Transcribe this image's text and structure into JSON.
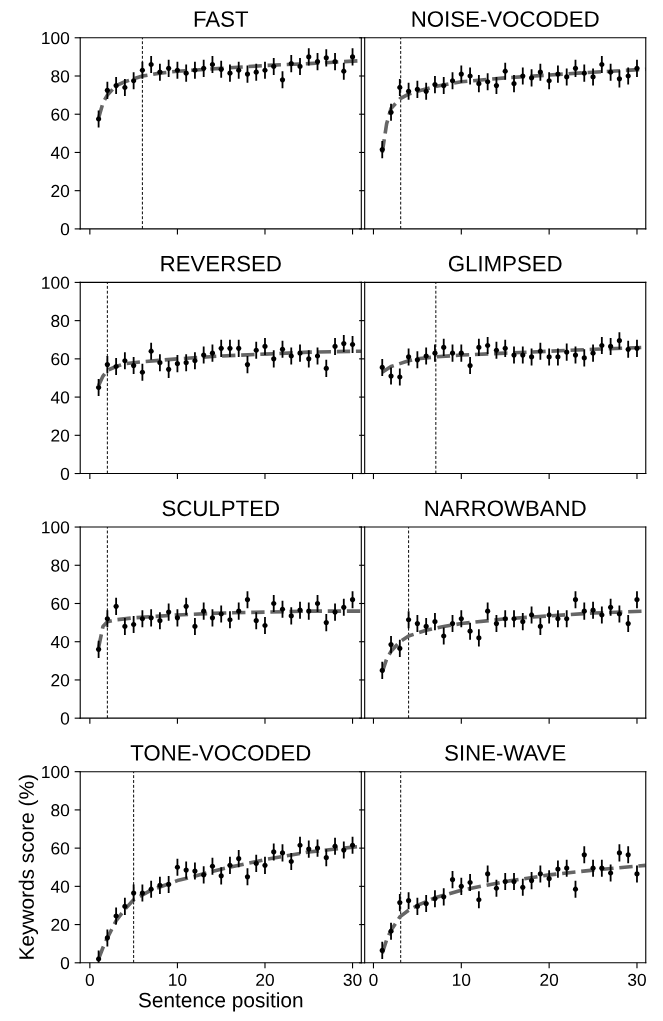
{
  "chart_data": [
    {
      "type": "scatter",
      "title": "FAST",
      "xlim": [
        -1.1,
        31
      ],
      "ylim": [
        0,
        100
      ],
      "xticks": [
        0,
        10,
        20,
        30
      ],
      "yticks": [
        0,
        20,
        40,
        60,
        80,
        100
      ],
      "tick_labels": "y",
      "ref_lines": [
        {
          "axis": "x",
          "value": 6,
          "color": "#000000",
          "line_style": "dashed"
        }
      ],
      "series": [
        {
          "color": "#000000",
          "marker": "circle",
          "x": [
            1,
            2,
            3,
            4,
            5,
            6,
            7,
            8,
            9,
            10,
            11,
            12,
            13,
            14,
            15,
            16,
            17,
            18,
            19,
            20,
            21,
            22,
            23,
            24,
            25,
            26,
            27,
            28,
            29,
            30
          ],
          "values": [
            57.5,
            72.5,
            75,
            74,
            77.5,
            83,
            86,
            82,
            84,
            83,
            81.5,
            83,
            84,
            86,
            83.5,
            81.5,
            83,
            81,
            82,
            83,
            85,
            78,
            86.5,
            85,
            90,
            87.5,
            89.5,
            87.5,
            82.5,
            90
          ],
          "errors": [
            4,
            4,
            4,
            4,
            4,
            4,
            4,
            4,
            4,
            4,
            4,
            4,
            4,
            4,
            4,
            4,
            4,
            4,
            4,
            4,
            4,
            4,
            4,
            4,
            4,
            4,
            4,
            4,
            4,
            4
          ]
        },
        {
          "type": "line",
          "color": "#666666",
          "line_style": "dashed",
          "x": [
            1,
            1.5,
            2,
            3,
            4,
            6,
            8,
            10,
            15,
            20,
            25,
            31
          ],
          "values": [
            58,
            66,
            70,
            75,
            77,
            80,
            81.5,
            82.5,
            84,
            85.5,
            86.5,
            88
          ]
        }
      ]
    },
    {
      "type": "scatter",
      "title": "NOISE-VOCODED",
      "xlim": [
        -1,
        31
      ],
      "ylim": [
        0,
        100
      ],
      "xticks": [
        0,
        10,
        20,
        30
      ],
      "yticks": [
        0,
        20,
        40,
        60,
        80,
        100
      ],
      "tick_labels": false,
      "ref_lines": [
        {
          "axis": "x",
          "value": 3.1,
          "color": "#000000",
          "line_style": "dashed"
        }
      ],
      "series": [
        {
          "color": "#000000",
          "marker": "circle",
          "x": [
            1,
            2,
            3,
            4,
            5,
            6,
            7,
            8,
            9,
            10,
            11,
            12,
            13,
            14,
            15,
            16,
            17,
            18,
            19,
            20,
            21,
            22,
            23,
            24,
            25,
            26,
            27,
            28,
            29,
            30
          ],
          "values": [
            41.5,
            61,
            74,
            72,
            73,
            72,
            75.5,
            75,
            77.5,
            81,
            80,
            76,
            77,
            75,
            82.5,
            76,
            80,
            79,
            82,
            77.5,
            81,
            79.5,
            84,
            81.5,
            79.5,
            86,
            82,
            78.5,
            80,
            84
          ],
          "errors": [
            4,
            4,
            4,
            4,
            4,
            4,
            4,
            4,
            4,
            4,
            4,
            4,
            4,
            4,
            4,
            4,
            4,
            4,
            4,
            4,
            4,
            4,
            4,
            4,
            4,
            4,
            4,
            4,
            4,
            4
          ]
        },
        {
          "type": "line",
          "color": "#666666",
          "line_style": "dashed",
          "x": [
            1,
            1.5,
            2,
            3,
            4,
            5,
            7,
            10,
            15,
            20,
            25,
            31
          ],
          "values": [
            40,
            55,
            63,
            68,
            70.5,
            72,
            74.5,
            77,
            79,
            80.5,
            82,
            83.5
          ]
        }
      ]
    },
    {
      "type": "scatter",
      "title": "REVERSED",
      "xlim": [
        -1.1,
        31
      ],
      "ylim": [
        0,
        100
      ],
      "xticks": [
        0,
        10,
        20,
        30
      ],
      "yticks": [
        0,
        20,
        40,
        60,
        80,
        100
      ],
      "tick_labels": "y",
      "ref_lines": [
        {
          "axis": "x",
          "value": 2,
          "color": "#000000",
          "line_style": "dashed"
        }
      ],
      "series": [
        {
          "color": "#000000",
          "marker": "circle",
          "x": [
            1,
            2,
            3,
            4,
            5,
            6,
            7,
            8,
            9,
            10,
            11,
            12,
            13,
            14,
            15,
            16,
            17,
            18,
            19,
            20,
            21,
            22,
            23,
            24,
            25,
            26,
            27,
            28,
            29,
            30
          ],
          "values": [
            45,
            57,
            56,
            59,
            56.5,
            53,
            64,
            58,
            54.5,
            57.5,
            58,
            59,
            62,
            63,
            65.5,
            65.5,
            65.5,
            57,
            64.5,
            66.5,
            60,
            65,
            61.5,
            63,
            60,
            61.5,
            55,
            66.5,
            68,
            67.5
          ],
          "errors": [
            4,
            4,
            4,
            4,
            4,
            4,
            4,
            4,
            4,
            4,
            4,
            4,
            4,
            4,
            4,
            4,
            4,
            4,
            4,
            4,
            4,
            4,
            4,
            4,
            4,
            4,
            4,
            4,
            4,
            4
          ]
        },
        {
          "type": "line",
          "color": "#666666",
          "line_style": "dashed",
          "x": [
            1,
            1.5,
            2,
            3,
            4,
            6,
            10,
            15,
            20,
            25,
            31
          ],
          "values": [
            46,
            51,
            54,
            56,
            57.5,
            58.5,
            60,
            61.5,
            62.5,
            63.5,
            64
          ]
        }
      ]
    },
    {
      "type": "scatter",
      "title": "GLIMPSED",
      "xlim": [
        -1,
        31
      ],
      "ylim": [
        0,
        100
      ],
      "xticks": [
        0,
        10,
        20,
        30
      ],
      "yticks": [
        0,
        20,
        40,
        60,
        80,
        100
      ],
      "tick_labels": false,
      "ref_lines": [
        {
          "axis": "x",
          "value": 7.1,
          "color": "#000000",
          "line_style": "dashed"
        }
      ],
      "series": [
        {
          "color": "#000000",
          "marker": "circle",
          "x": [
            1,
            2,
            3,
            4,
            5,
            6,
            7,
            8,
            9,
            10,
            11,
            12,
            13,
            14,
            15,
            16,
            17,
            18,
            19,
            20,
            21,
            22,
            23,
            24,
            25,
            26,
            27,
            28,
            29,
            30
          ],
          "values": [
            55.5,
            51,
            50.5,
            61,
            59.5,
            61.5,
            63,
            66,
            63,
            63,
            56.5,
            66,
            67,
            64.5,
            65.5,
            62,
            62,
            61,
            64,
            61,
            61,
            63.5,
            62,
            60.5,
            63,
            67,
            66.5,
            69.5,
            65,
            65.5
          ],
          "errors": [
            4,
            4,
            4,
            4,
            4,
            4,
            4,
            4,
            4,
            4,
            4,
            4,
            4,
            4,
            4,
            4,
            4,
            4,
            4,
            4,
            4,
            4,
            4,
            4,
            4,
            4,
            4,
            4,
            4,
            4
          ]
        },
        {
          "type": "line",
          "color": "#666666",
          "line_style": "dashed",
          "x": [
            1,
            2,
            3,
            4,
            5,
            7,
            10,
            15,
            20,
            25,
            31
          ],
          "values": [
            53,
            56,
            57.5,
            59,
            60,
            61,
            62,
            63,
            64,
            65,
            66
          ]
        }
      ]
    },
    {
      "type": "scatter",
      "title": "SCULPTED",
      "xlim": [
        -1.1,
        31
      ],
      "ylim": [
        0,
        100
      ],
      "xticks": [
        0,
        10,
        20,
        30
      ],
      "yticks": [
        0,
        20,
        40,
        60,
        80,
        100
      ],
      "tick_labels": "y",
      "ref_lines": [
        {
          "axis": "x",
          "value": 2,
          "color": "#000000",
          "line_style": "dashed"
        }
      ],
      "series": [
        {
          "color": "#000000",
          "marker": "circle",
          "x": [
            1,
            2,
            3,
            4,
            5,
            6,
            7,
            8,
            9,
            10,
            11,
            12,
            13,
            14,
            15,
            16,
            17,
            18,
            19,
            20,
            21,
            22,
            23,
            24,
            25,
            26,
            27,
            28,
            29,
            30
          ],
          "values": [
            36,
            52,
            58.5,
            48,
            49,
            52,
            52.5,
            51,
            55.5,
            52.5,
            58.5,
            48,
            56,
            52.5,
            54.5,
            51.5,
            56,
            62,
            51,
            48.5,
            60,
            57,
            53.5,
            56.5,
            56,
            60,
            50,
            55.5,
            58,
            62
          ],
          "errors": [
            4,
            4,
            4,
            4,
            4,
            4,
            4,
            4,
            4,
            4,
            4,
            4,
            4,
            4,
            4,
            4,
            4,
            4,
            4,
            4,
            4,
            4,
            4,
            4,
            4,
            4,
            4,
            4,
            4,
            4
          ]
        },
        {
          "type": "line",
          "color": "#666666",
          "line_style": "dashed",
          "x": [
            1,
            1.5,
            2,
            3,
            5,
            10,
            15,
            20,
            25,
            31
          ],
          "values": [
            37,
            48,
            50.5,
            51.5,
            52.5,
            54,
            55,
            55.5,
            56,
            56
          ]
        }
      ]
    },
    {
      "type": "scatter",
      "title": "NARROWBAND",
      "xlim": [
        -1,
        31
      ],
      "ylim": [
        0,
        100
      ],
      "xticks": [
        0,
        10,
        20,
        30
      ],
      "yticks": [
        0,
        20,
        40,
        60,
        80,
        100
      ],
      "tick_labels": false,
      "ref_lines": [
        {
          "axis": "x",
          "value": 4,
          "color": "#000000",
          "line_style": "dashed"
        }
      ],
      "series": [
        {
          "color": "#000000",
          "marker": "circle",
          "x": [
            1,
            2,
            3,
            4,
            5,
            6,
            7,
            8,
            9,
            10,
            11,
            12,
            13,
            14,
            15,
            16,
            17,
            18,
            19,
            20,
            21,
            22,
            23,
            24,
            25,
            26,
            27,
            28,
            29,
            30
          ],
          "values": [
            25,
            38.5,
            36.5,
            51.5,
            49.5,
            48,
            50.5,
            43,
            49.5,
            52,
            45.5,
            42,
            56,
            49.5,
            52,
            52,
            50.5,
            54,
            48,
            54,
            52,
            52,
            62,
            56,
            56.5,
            54,
            58,
            54.5,
            49.5,
            62
          ],
          "errors": [
            4,
            4,
            4,
            4,
            4,
            4,
            4,
            4,
            4,
            4,
            4,
            4,
            4,
            4,
            4,
            4,
            4,
            4,
            4,
            4,
            4,
            4,
            4,
            4,
            4,
            4,
            4,
            4,
            4,
            4
          ]
        },
        {
          "type": "line",
          "color": "#666666",
          "line_style": "dashed",
          "x": [
            1,
            1.5,
            2,
            3,
            4,
            6,
            8,
            10,
            15,
            20,
            25,
            31
          ],
          "values": [
            24,
            31,
            35,
            40,
            43,
            46,
            48,
            49.5,
            52,
            53.5,
            55,
            56
          ]
        }
      ]
    },
    {
      "type": "scatter",
      "title": "TONE-VOCODED",
      "xlabel": "Sentence position",
      "ylabel": "Keywords score (%)",
      "xlim": [
        -1.1,
        31
      ],
      "ylim": [
        0,
        100
      ],
      "xticks": [
        0,
        10,
        20,
        30
      ],
      "yticks": [
        0,
        20,
        40,
        60,
        80,
        100
      ],
      "ref_lines": [
        {
          "axis": "x",
          "value": 5,
          "color": "#000000",
          "line_style": "dashed"
        }
      ],
      "series": [
        {
          "color": "#000000",
          "marker": "circle",
          "x": [
            1,
            2,
            3,
            4,
            5,
            6,
            7,
            8,
            9,
            10,
            11,
            12,
            13,
            14,
            15,
            16,
            17,
            18,
            19,
            20,
            21,
            22,
            23,
            24,
            25,
            26,
            27,
            28,
            29,
            30
          ],
          "values": [
            2,
            13,
            24.5,
            29.5,
            36.5,
            36.5,
            38.5,
            40.5,
            41,
            50,
            48.5,
            48,
            46,
            50.5,
            45.5,
            51,
            54.5,
            45,
            52,
            51,
            58,
            57.5,
            53,
            61.5,
            59.5,
            60,
            55,
            61,
            59,
            61.5
          ],
          "errors": [
            4,
            4,
            4,
            4,
            4,
            4,
            4,
            4,
            4,
            4,
            4,
            4,
            4,
            4,
            4,
            4,
            4,
            4,
            4,
            4,
            4,
            4,
            4,
            4,
            4,
            4,
            4,
            4,
            4,
            4
          ]
        },
        {
          "type": "line",
          "color": "#666666",
          "line_style": "dashed",
          "x": [
            1,
            1.5,
            2,
            3,
            4,
            5,
            7,
            10,
            15,
            20,
            25,
            31
          ],
          "values": [
            2,
            8,
            13,
            22,
            28,
            33,
            38,
            43,
            49,
            54,
            58,
            61
          ]
        }
      ]
    },
    {
      "type": "scatter",
      "title": "SINE-WAVE",
      "xlim": [
        -1,
        31
      ],
      "ylim": [
        0,
        100
      ],
      "xticks": [
        0,
        10,
        20,
        30
      ],
      "yticks": [
        0,
        20,
        40,
        60,
        80,
        100
      ],
      "tick_labels": "x",
      "ref_lines": [
        {
          "axis": "x",
          "value": 3.1,
          "color": "#000000",
          "line_style": "dashed"
        }
      ],
      "series": [
        {
          "color": "#000000",
          "marker": "circle",
          "x": [
            1,
            2,
            3,
            4,
            5,
            6,
            7,
            8,
            9,
            10,
            11,
            12,
            13,
            14,
            15,
            16,
            17,
            18,
            19,
            20,
            21,
            22,
            23,
            24,
            25,
            26,
            27,
            28,
            29,
            30
          ],
          "values": [
            6.5,
            16.5,
            31.5,
            32.5,
            29.5,
            31,
            33.5,
            34.5,
            43.5,
            40,
            42,
            33,
            46.5,
            39,
            42.5,
            42.5,
            39.5,
            43,
            46.5,
            44,
            49,
            49.5,
            38.5,
            56.5,
            49.5,
            49.5,
            47,
            57.5,
            56.5,
            46.5
          ],
          "errors": [
            4,
            4,
            4,
            4,
            4,
            4,
            4,
            4,
            4,
            4,
            4,
            4,
            4,
            4,
            4,
            4,
            4,
            4,
            4,
            4,
            4,
            4,
            4,
            4,
            4,
            4,
            4,
            4,
            4,
            4
          ]
        },
        {
          "type": "line",
          "color": "#666666",
          "line_style": "dashed",
          "x": [
            1,
            1.5,
            2,
            3,
            4,
            5,
            7,
            10,
            15,
            20,
            25,
            31
          ],
          "values": [
            5,
            12,
            17,
            24,
            27.5,
            30,
            34,
            38,
            42.5,
            46,
            48.5,
            51
          ]
        }
      ]
    }
  ]
}
